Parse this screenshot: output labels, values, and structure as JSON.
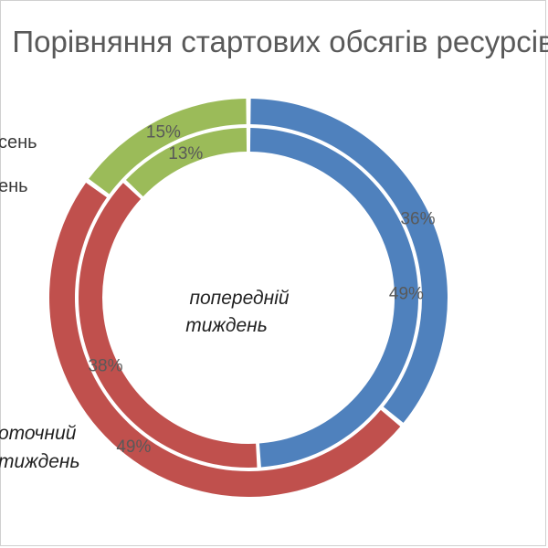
{
  "chart_data": {
    "type": "doughnut",
    "title": "Порівняння стартових обсягів ресурсів",
    "categories": [
      "",
      "",
      ""
    ],
    "category_colors": [
      "#4F81BD",
      "#C0504D",
      "#9BBB59"
    ],
    "series": [
      {
        "name": "поточний тиждень",
        "ring": "outer",
        "values": [
          36,
          49,
          15
        ],
        "data_labels": [
          "36%",
          "49%",
          "15%"
        ]
      },
      {
        "name": "попередній тиждень",
        "ring": "inner",
        "values": [
          49,
          38,
          13
        ],
        "data_labels": [
          "49%",
          "38%",
          "13%"
        ]
      }
    ],
    "legend": {
      "placement": "left",
      "entries": [
        "сень",
        "ень"
      ]
    },
    "ring_series_labels": {
      "outer": [
        "оточний",
        "тиждень"
      ],
      "inner": [
        "попередній",
        "тиждень"
      ]
    }
  }
}
